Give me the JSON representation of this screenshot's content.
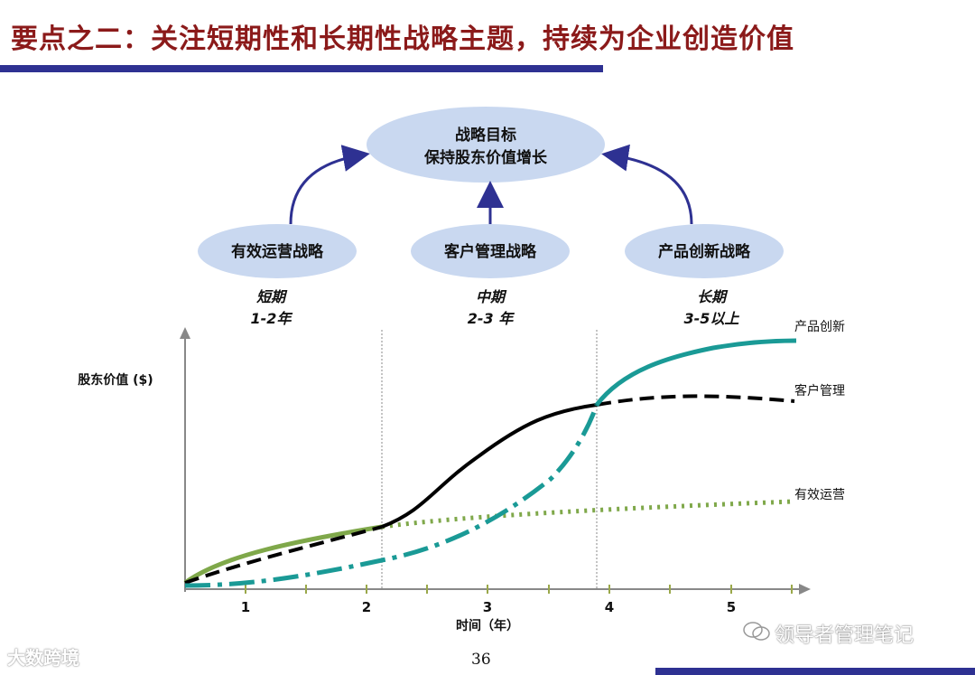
{
  "title": "要点之二：关注短期性和长期性战略主题，持续为企业创造价值",
  "goal": {
    "line1": "战略目标",
    "line2": "保持股东价值增长"
  },
  "strategies": [
    {
      "label": "有效运营战略"
    },
    {
      "label": "客户管理战略"
    },
    {
      "label": "产品创新战略"
    }
  ],
  "terms": [
    {
      "name": "短期",
      "range": "1-2年"
    },
    {
      "name": "中期",
      "range": "2-3 年"
    },
    {
      "name": "长期",
      "range": "3-5以上"
    }
  ],
  "chart_data": {
    "type": "line",
    "ylabel": "股东价值 ($)",
    "xlabel": "时间（年）",
    "x_ticks": [
      "1",
      "2",
      "3",
      "4",
      "5"
    ],
    "series": [
      {
        "name": "产品创新",
        "color": "#1a9a96",
        "style": "solid-after-dashdot"
      },
      {
        "name": "客户管理",
        "color": "#000000",
        "style": "solid-then-dashed"
      },
      {
        "name": "有效运营",
        "color": "#7fa84a",
        "style": "solid-then-dotted"
      }
    ]
  },
  "colors": {
    "title": "#8b1a1a",
    "rule": "#2e3192",
    "ellipse": "#c9d8f0",
    "arrow": "#2e3192"
  },
  "page_number": "36",
  "watermark_left": "大数跨境",
  "watermark_right": "领导者管理笔记"
}
